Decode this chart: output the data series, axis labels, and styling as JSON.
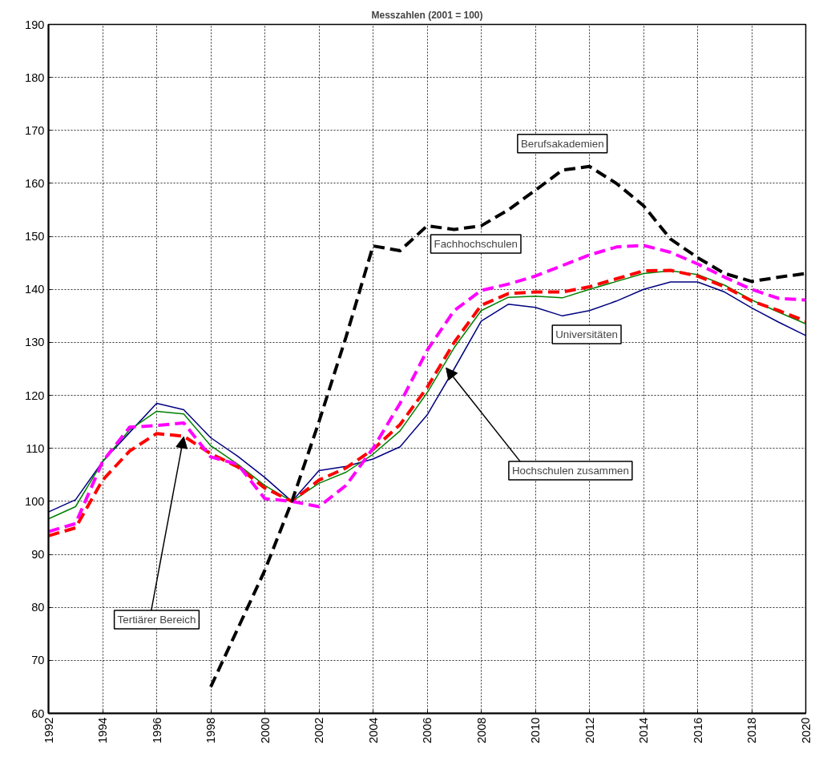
{
  "chart_data": {
    "type": "line",
    "title": "Messzahlen (2001 = 100)",
    "x": [
      1992,
      1993,
      1994,
      1995,
      1996,
      1997,
      1998,
      1999,
      2000,
      2001,
      2002,
      2003,
      2004,
      2005,
      2006,
      2007,
      2008,
      2009,
      2010,
      2011,
      2012,
      2013,
      2014,
      2015,
      2016,
      2017,
      2018,
      2019,
      2020
    ],
    "series": [
      {
        "color": "#000080",
        "line_style": "solid",
        "values": [
          98,
          100.3,
          107.5,
          113,
          118.5,
          117.3,
          112,
          108.5,
          104.5,
          100,
          105.8,
          106.6,
          108,
          110.3,
          116.3,
          125,
          134,
          137.2,
          136.6,
          135,
          136,
          137.8,
          140,
          141.4,
          141.4,
          139.5,
          136.5,
          133.8,
          131.3
        ]
      },
      {
        "color": "#008000",
        "line_style": "solid",
        "values": [
          96.7,
          99,
          107.5,
          113.5,
          117,
          116.5,
          110.5,
          107,
          103,
          100,
          103.4,
          105.5,
          108.9,
          113.3,
          120.5,
          129,
          136,
          138.5,
          138.7,
          138.4,
          140,
          141.5,
          143,
          143.5,
          142.8,
          140.8,
          138,
          135.7,
          133.5
        ]
      },
      {
        "color": "#ff0000",
        "line_style": "dashed",
        "values": [
          93.5,
          95,
          104,
          109.5,
          112.8,
          112.3,
          109,
          106.5,
          102.5,
          100,
          104,
          106.3,
          109.8,
          114.5,
          121.5,
          130,
          137,
          139.2,
          139.5,
          139.5,
          140.5,
          142,
          143.5,
          143.6,
          142.5,
          140.5,
          137.8,
          136,
          134
        ]
      },
      {
        "color": "#ff00ff",
        "line_style": "dashed",
        "values": [
          94.3,
          95.8,
          107.5,
          114,
          114.3,
          114.8,
          108.4,
          107,
          100.5,
          100,
          99,
          103,
          110,
          118.5,
          128.5,
          136,
          139.8,
          141,
          142.5,
          144.5,
          146.5,
          148,
          148.3,
          147,
          144.8,
          142.3,
          140,
          138.3,
          138
        ]
      },
      {
        "color": "#000000",
        "line_style": "dashed",
        "values": [
          null,
          null,
          null,
          null,
          null,
          null,
          65,
          76,
          87,
          100,
          115,
          131,
          148.2,
          147.3,
          152,
          151.3,
          152,
          155,
          158.7,
          162.5,
          163.2,
          160,
          155.8,
          149.5,
          146,
          143,
          141.5,
          142.3,
          143
        ]
      }
    ],
    "xlim": [
      1992,
      2020
    ],
    "xticks": [
      1992,
      1994,
      1996,
      1998,
      2000,
      2002,
      2004,
      2006,
      2008,
      2010,
      2012,
      2014,
      2016,
      2018,
      2020
    ],
    "ylim": [
      60,
      190
    ],
    "yticks": [
      60,
      70,
      80,
      90,
      100,
      110,
      120,
      130,
      140,
      150,
      160,
      170,
      180,
      190
    ],
    "annotations": [
      "Universitäten",
      {
        "text": "Hochschulen zusammen",
        "x": 2006.7,
        "y": 125.2
      },
      {
        "text": "Tertiärer Bereich",
        "x": 1997,
        "y": 112.2
      },
      "Fachhochschulen",
      "Berufsakademien"
    ],
    "grid": true,
    "legend": false,
    "marker": "none"
  }
}
